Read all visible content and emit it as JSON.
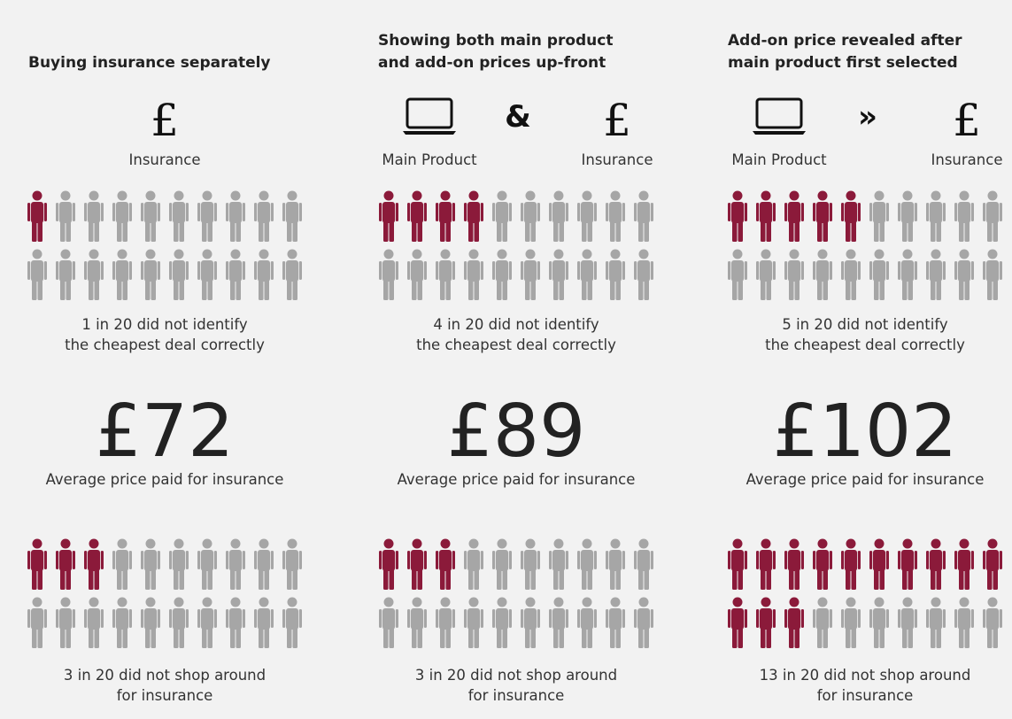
{
  "columns": [
    {
      "title": [
        "Buying insurance separately"
      ],
      "items": [
        {
          "symbol": "£",
          "label": "Insurance"
        }
      ],
      "misidentified": {
        "highlighted": 1,
        "total": 20,
        "caption": [
          "1 in 20 did not identify",
          "the cheapest deal correctly"
        ]
      },
      "price": "£72",
      "price_caption": "Average price paid for insurance",
      "no_shop": {
        "highlighted": 3,
        "total": 20,
        "caption": [
          "3 in 20 did not shop around",
          "for insurance"
        ]
      }
    },
    {
      "title": [
        "Showing both main product",
        "and add-on prices up-front"
      ],
      "items": [
        {
          "icon": "laptop",
          "label": "Main Product"
        },
        {
          "symbol": "&"
        },
        {
          "symbol": "£",
          "label": "Insurance"
        }
      ],
      "misidentified": {
        "highlighted": 4,
        "total": 20,
        "caption": [
          "4 in 20 did not identify",
          "the cheapest deal correctly"
        ]
      },
      "price": "£89",
      "price_caption": "Average price paid for insurance",
      "no_shop": {
        "highlighted": 3,
        "total": 20,
        "caption": [
          "3 in 20 did not shop around",
          "for insurance"
        ]
      }
    },
    {
      "title": [
        "Add-on price revealed after",
        "main product first selected"
      ],
      "items": [
        {
          "icon": "laptop",
          "label": "Main Product"
        },
        {
          "symbol": "»"
        },
        {
          "symbol": "£",
          "label": "Insurance"
        }
      ],
      "misidentified": {
        "highlighted": 5,
        "total": 20,
        "caption": [
          "5 in 20 did not identify",
          "the cheapest deal correctly"
        ]
      },
      "price": "£102",
      "price_caption": "Average price paid for insurance",
      "no_shop": {
        "highlighted": 13,
        "total": 20,
        "caption": [
          "13 in 20 did not shop around",
          "for insurance"
        ]
      }
    }
  ],
  "highlight_color": "#8b1a3a",
  "base_color": "#a6a6a6"
}
